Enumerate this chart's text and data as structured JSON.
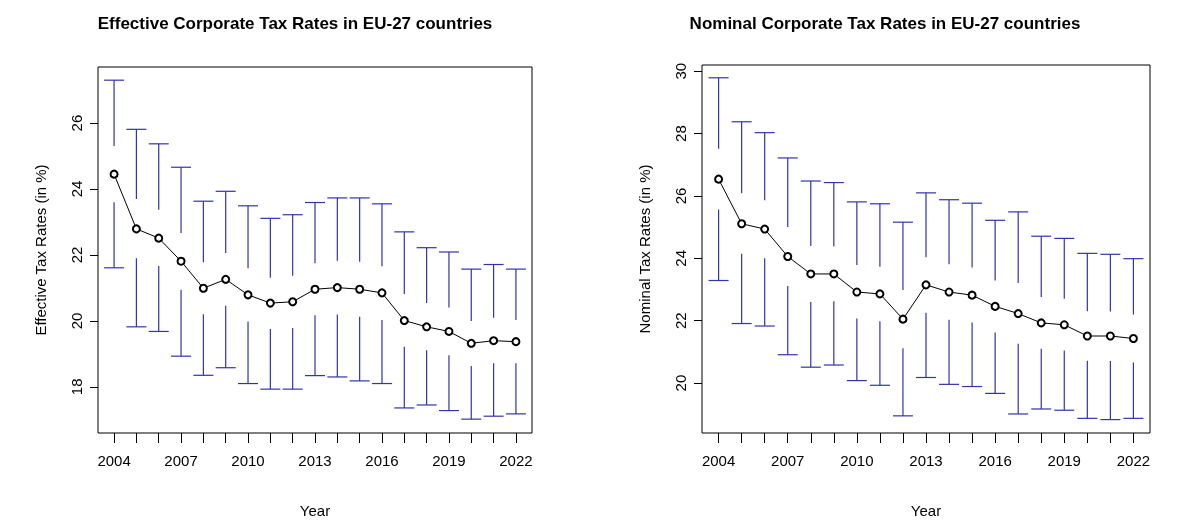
{
  "chart_data": [
    {
      "type": "line",
      "title": "Effective Corporate Tax Rates in EU-27 countries",
      "xlabel": "Year",
      "ylabel": "Effective Tax Rates (in %)",
      "x": [
        2004,
        2005,
        2006,
        2007,
        2008,
        2009,
        2010,
        2011,
        2012,
        2013,
        2014,
        2015,
        2016,
        2017,
        2018,
        2019,
        2020,
        2021,
        2022
      ],
      "series": [
        {
          "color": "#000000",
          "values": [
            24.45,
            22.79,
            22.51,
            21.81,
            20.99,
            21.26,
            20.79,
            20.54,
            20.58,
            20.96,
            21.01,
            20.96,
            20.85,
            20.01,
            19.82,
            19.68,
            19.32,
            19.4,
            19.37
          ],
          "errors": [
            [
              21.61,
              27.3
            ],
            [
              19.82,
              25.81
            ],
            [
              19.68,
              25.37
            ],
            [
              18.93,
              24.66
            ],
            [
              18.35,
              23.63
            ],
            [
              18.58,
              23.93
            ],
            [
              18.1,
              23.49
            ],
            [
              17.93,
              23.11
            ],
            [
              17.93,
              23.22
            ],
            [
              18.34,
              23.59
            ],
            [
              18.3,
              23.73
            ],
            [
              18.18,
              23.73
            ],
            [
              18.1,
              23.55
            ],
            [
              17.36,
              22.7
            ],
            [
              17.45,
              22.22
            ],
            [
              17.28,
              22.09
            ],
            [
              17.02,
              21.57
            ],
            [
              17.11,
              21.71
            ],
            [
              17.18,
              21.57
            ]
          ]
        }
      ],
      "xlim": [
        2003.28,
        2022.72
      ],
      "xticks": [
        2004,
        {
          "value": 2005,
          "label": null
        },
        {
          "value": 2006,
          "label": null
        },
        2007,
        {
          "value": 2008,
          "label": null
        },
        {
          "value": 2009,
          "label": null
        },
        2010,
        {
          "value": 2011,
          "label": null
        },
        {
          "value": 2012,
          "label": null
        },
        2013,
        {
          "value": 2014,
          "label": null
        },
        {
          "value": 2015,
          "label": null
        },
        2016,
        {
          "value": 2017,
          "label": null
        },
        {
          "value": 2018,
          "label": null
        },
        2019,
        {
          "value": 2020,
          "label": null
        },
        {
          "value": 2021,
          "label": null
        },
        2022
      ],
      "ylim": [
        16.6,
        27.7
      ],
      "yticks": [
        18,
        20,
        22,
        24,
        26
      ],
      "marker": "circle",
      "line_style": "solid",
      "grid": false
    },
    {
      "type": "line",
      "title": "Nominal Corporate Tax Rates in EU-27 countries",
      "xlabel": "Year",
      "ylabel": "Nominal Tax Rates (in %)",
      "x": [
        2004,
        2005,
        2006,
        2007,
        2008,
        2009,
        2010,
        2011,
        2012,
        2013,
        2014,
        2015,
        2016,
        2017,
        2018,
        2019,
        2020,
        2021,
        2022
      ],
      "series": [
        {
          "color": "#000000",
          "values": [
            26.54,
            25.11,
            24.94,
            24.06,
            23.5,
            23.5,
            22.92,
            22.86,
            22.05,
            23.15,
            22.92,
            22.82,
            22.46,
            22.23,
            21.93,
            21.87,
            21.51,
            21.51,
            21.43
          ],
          "errors": [
            [
              23.29,
              29.79
            ],
            [
              21.91,
              28.38
            ],
            [
              21.83,
              28.03
            ],
            [
              20.91,
              27.22
            ],
            [
              20.51,
              26.48
            ],
            [
              20.58,
              26.43
            ],
            [
              20.08,
              25.81
            ],
            [
              19.93,
              25.75
            ],
            [
              18.95,
              25.16
            ],
            [
              20.18,
              26.1
            ],
            [
              19.96,
              25.88
            ],
            [
              19.89,
              25.77
            ],
            [
              19.67,
              25.22
            ],
            [
              19.01,
              25.49
            ],
            [
              19.17,
              24.71
            ],
            [
              19.13,
              24.64
            ],
            [
              18.87,
              24.16
            ],
            [
              18.83,
              24.13
            ],
            [
              18.87,
              23.99
            ]
          ]
        }
      ],
      "xlim": [
        2003.28,
        2022.72
      ],
      "xticks": [
        2004,
        {
          "value": 2005,
          "label": null
        },
        {
          "value": 2006,
          "label": null
        },
        2007,
        {
          "value": 2008,
          "label": null
        },
        {
          "value": 2009,
          "label": null
        },
        2010,
        {
          "value": 2011,
          "label": null
        },
        {
          "value": 2012,
          "label": null
        },
        2013,
        {
          "value": 2014,
          "label": null
        },
        {
          "value": 2015,
          "label": null
        },
        2016,
        {
          "value": 2017,
          "label": null
        },
        {
          "value": 2018,
          "label": null
        },
        2019,
        {
          "value": 2020,
          "label": null
        },
        {
          "value": 2021,
          "label": null
        },
        2022
      ],
      "ylim": [
        18.4,
        30.2
      ],
      "yticks": [
        20,
        22,
        24,
        26,
        28,
        30
      ],
      "marker": "circle",
      "line_style": "solid",
      "grid": false
    }
  ]
}
